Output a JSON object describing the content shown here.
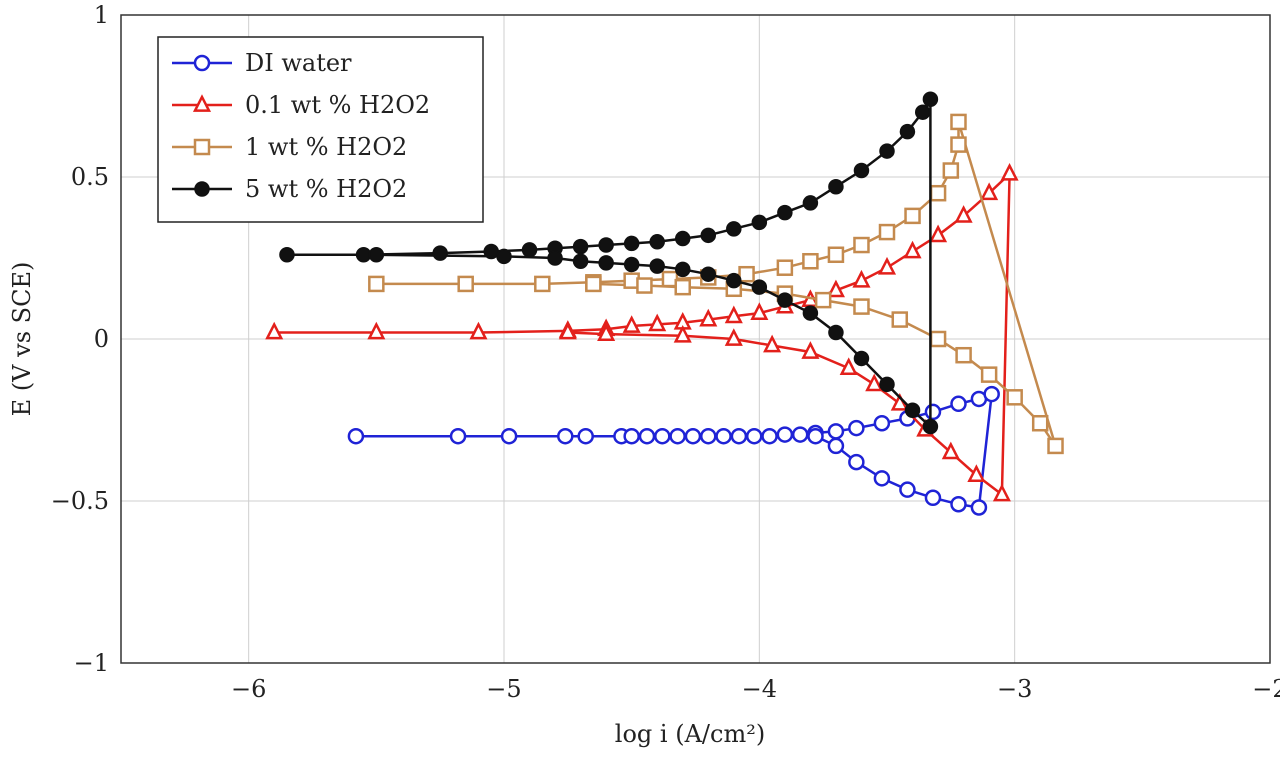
{
  "chart_data": {
    "type": "line",
    "title": "",
    "xlabel": "log i (A/cm²)",
    "ylabel": "E (V vs SCE)",
    "xlim": [
      -6.5,
      -2
    ],
    "ylim": [
      -1,
      1
    ],
    "xticks": [
      "−6",
      "−5",
      "−4",
      "−3",
      "−2"
    ],
    "yticks": [
      "1",
      "0.5",
      "0",
      "−0.5",
      "−1"
    ],
    "grid": true,
    "legend_position": "top-left",
    "series": [
      {
        "name": "DI water",
        "color": "#1f23d6",
        "marker": "circle-open",
        "points": [
          [
            -5.58,
            -0.3
          ],
          [
            -5.18,
            -0.3
          ],
          [
            -4.98,
            -0.3
          ],
          [
            -4.76,
            -0.3
          ],
          [
            -4.68,
            -0.3
          ],
          [
            -4.54,
            -0.3
          ],
          [
            -4.5,
            -0.3
          ],
          [
            -4.44,
            -0.3
          ],
          [
            -4.38,
            -0.3
          ],
          [
            -4.32,
            -0.3
          ],
          [
            -4.26,
            -0.3
          ],
          [
            -4.2,
            -0.3
          ],
          [
            -4.14,
            -0.3
          ],
          [
            -4.08,
            -0.3
          ],
          [
            -4.02,
            -0.3
          ],
          [
            -3.96,
            -0.3
          ],
          [
            -3.9,
            -0.295
          ],
          [
            -3.84,
            -0.295
          ],
          [
            -3.78,
            -0.29
          ],
          [
            -3.7,
            -0.285
          ],
          [
            -3.62,
            -0.275
          ],
          [
            -3.52,
            -0.26
          ],
          [
            -3.42,
            -0.245
          ],
          [
            -3.32,
            -0.225
          ],
          [
            -3.22,
            -0.2
          ],
          [
            -3.14,
            -0.185
          ],
          [
            -3.09,
            -0.17
          ],
          [
            -3.14,
            -0.52
          ],
          [
            -3.22,
            -0.51
          ],
          [
            -3.32,
            -0.49
          ],
          [
            -3.42,
            -0.465
          ],
          [
            -3.52,
            -0.43
          ],
          [
            -3.62,
            -0.38
          ],
          [
            -3.7,
            -0.33
          ],
          [
            -3.78,
            -0.3
          ]
        ]
      },
      {
        "name": "0.1 wt % H2O2",
        "color": "#e3201b",
        "marker": "triangle-open",
        "points": [
          [
            -5.9,
            0.02
          ],
          [
            -5.5,
            0.02
          ],
          [
            -5.1,
            0.02
          ],
          [
            -4.75,
            0.025
          ],
          [
            -4.6,
            0.03
          ],
          [
            -4.5,
            0.04
          ],
          [
            -4.4,
            0.045
          ],
          [
            -4.3,
            0.05
          ],
          [
            -4.2,
            0.06
          ],
          [
            -4.1,
            0.07
          ],
          [
            -4.0,
            0.08
          ],
          [
            -3.9,
            0.1
          ],
          [
            -3.8,
            0.12
          ],
          [
            -3.7,
            0.15
          ],
          [
            -3.6,
            0.18
          ],
          [
            -3.5,
            0.22
          ],
          [
            -3.4,
            0.27
          ],
          [
            -3.3,
            0.32
          ],
          [
            -3.2,
            0.38
          ],
          [
            -3.1,
            0.45
          ],
          [
            -3.02,
            0.51
          ],
          [
            -3.05,
            -0.48
          ],
          [
            -3.15,
            -0.42
          ],
          [
            -3.25,
            -0.35
          ],
          [
            -3.35,
            -0.28
          ],
          [
            -3.45,
            -0.2
          ],
          [
            -3.55,
            -0.14
          ],
          [
            -3.65,
            -0.09
          ],
          [
            -3.8,
            -0.04
          ],
          [
            -3.95,
            -0.02
          ],
          [
            -4.1,
            0.0
          ],
          [
            -4.3,
            0.01
          ],
          [
            -4.6,
            0.015
          ],
          [
            -4.75,
            0.02
          ]
        ]
      },
      {
        "name": "1 wt % H2O2",
        "color": "#c48a4e",
        "marker": "square-open",
        "points": [
          [
            -5.5,
            0.17
          ],
          [
            -5.15,
            0.17
          ],
          [
            -4.85,
            0.17
          ],
          [
            -4.65,
            0.175
          ],
          [
            -4.5,
            0.18
          ],
          [
            -4.35,
            0.185
          ],
          [
            -4.2,
            0.19
          ],
          [
            -4.05,
            0.2
          ],
          [
            -3.9,
            0.22
          ],
          [
            -3.8,
            0.24
          ],
          [
            -3.7,
            0.26
          ],
          [
            -3.6,
            0.29
          ],
          [
            -3.5,
            0.33
          ],
          [
            -3.4,
            0.38
          ],
          [
            -3.3,
            0.45
          ],
          [
            -3.25,
            0.52
          ],
          [
            -3.22,
            0.6
          ],
          [
            -3.22,
            0.67
          ],
          [
            -2.84,
            -0.33
          ],
          [
            -2.9,
            -0.26
          ],
          [
            -3.0,
            -0.18
          ],
          [
            -3.1,
            -0.11
          ],
          [
            -3.2,
            -0.05
          ],
          [
            -3.3,
            0.0
          ],
          [
            -3.45,
            0.06
          ],
          [
            -3.6,
            0.1
          ],
          [
            -3.75,
            0.12
          ],
          [
            -3.9,
            0.14
          ],
          [
            -4.1,
            0.155
          ],
          [
            -4.3,
            0.16
          ],
          [
            -4.45,
            0.165
          ],
          [
            -4.65,
            0.17
          ]
        ]
      },
      {
        "name": "5 wt % H2O2",
        "color": "#111111",
        "marker": "circle-filled",
        "points": [
          [
            -5.85,
            0.26
          ],
          [
            -5.55,
            0.26
          ],
          [
            -5.25,
            0.265
          ],
          [
            -5.05,
            0.27
          ],
          [
            -4.9,
            0.275
          ],
          [
            -4.8,
            0.28
          ],
          [
            -4.7,
            0.285
          ],
          [
            -4.6,
            0.29
          ],
          [
            -4.5,
            0.295
          ],
          [
            -4.4,
            0.3
          ],
          [
            -4.3,
            0.31
          ],
          [
            -4.2,
            0.32
          ],
          [
            -4.1,
            0.34
          ],
          [
            -4.0,
            0.36
          ],
          [
            -3.9,
            0.39
          ],
          [
            -3.8,
            0.42
          ],
          [
            -3.7,
            0.47
          ],
          [
            -3.6,
            0.52
          ],
          [
            -3.5,
            0.58
          ],
          [
            -3.42,
            0.64
          ],
          [
            -3.36,
            0.7
          ],
          [
            -3.33,
            0.74
          ],
          [
            -3.33,
            -0.27
          ],
          [
            -3.4,
            -0.22
          ],
          [
            -3.5,
            -0.14
          ],
          [
            -3.6,
            -0.06
          ],
          [
            -3.7,
            0.02
          ],
          [
            -3.8,
            0.08
          ],
          [
            -3.9,
            0.12
          ],
          [
            -4.0,
            0.16
          ],
          [
            -4.1,
            0.18
          ],
          [
            -4.2,
            0.2
          ],
          [
            -4.3,
            0.215
          ],
          [
            -4.4,
            0.225
          ],
          [
            -4.5,
            0.23
          ],
          [
            -4.6,
            0.235
          ],
          [
            -4.7,
            0.24
          ],
          [
            -4.8,
            0.25
          ],
          [
            -5.0,
            0.255
          ],
          [
            -5.5,
            0.26
          ]
        ]
      }
    ]
  }
}
